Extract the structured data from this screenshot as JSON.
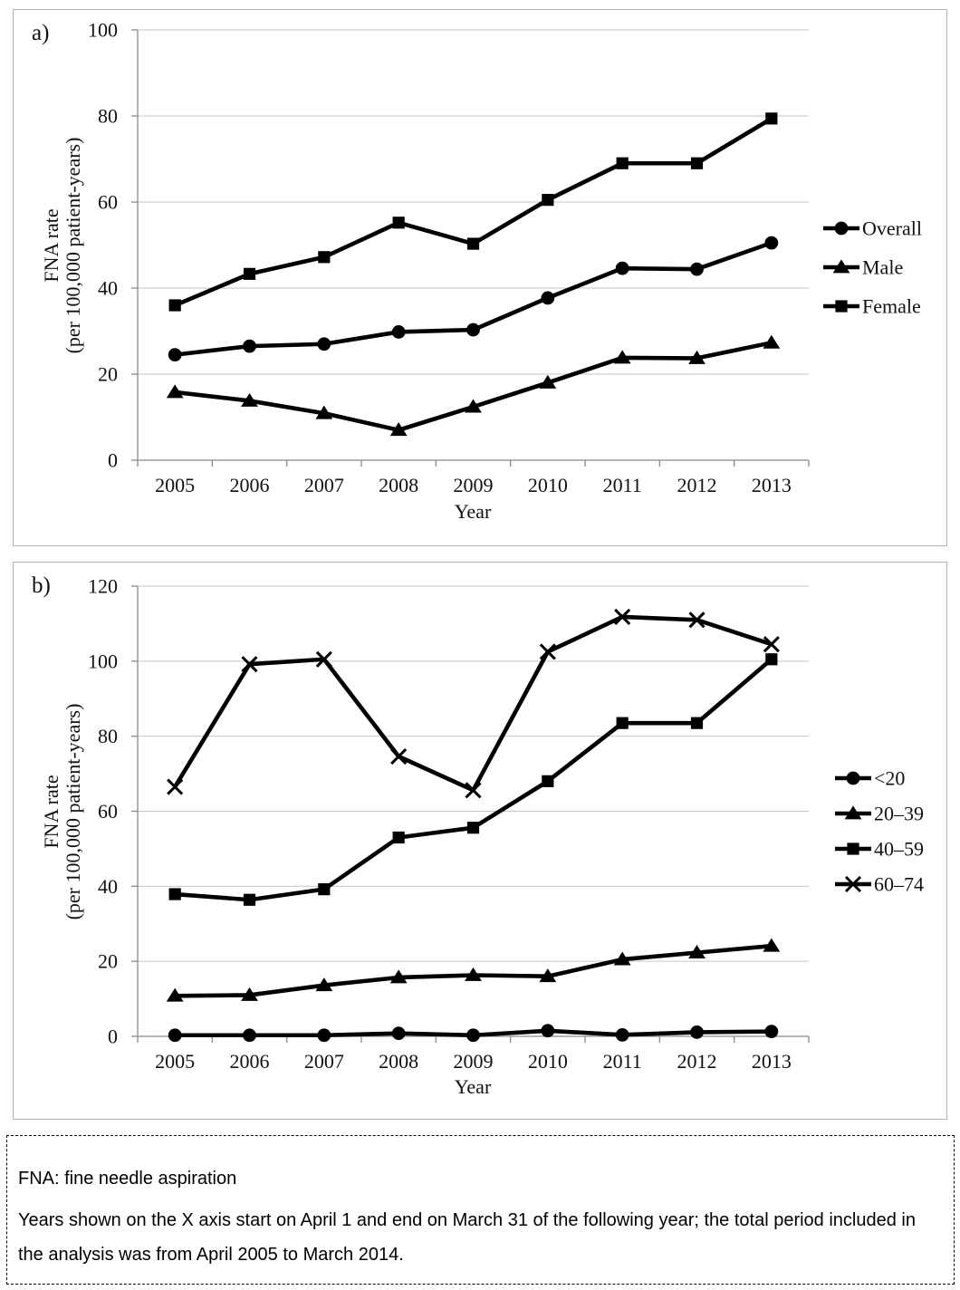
{
  "chart_data": [
    {
      "type": "line",
      "panel_label": "a)",
      "xlabel": "Year",
      "ylabel": "FNA rate (per 100,000 patient-years)",
      "ylabel_lines": [
        "FNA rate",
        "(per 100,000 patient-years)"
      ],
      "categories": [
        "2005",
        "2006",
        "2007",
        "2008",
        "2009",
        "2010",
        "2011",
        "2012",
        "2013"
      ],
      "ylim": [
        0,
        100
      ],
      "ytick_step": 20,
      "grid": true,
      "legend_position": "right",
      "series": [
        {
          "name": "Overall",
          "marker": "circle",
          "values": [
            24.5,
            26.5,
            27.0,
            29.8,
            30.3,
            37.7,
            44.6,
            44.4,
            50.5
          ]
        },
        {
          "name": "Male",
          "marker": "triangle",
          "values": [
            15.8,
            13.8,
            10.9,
            7.0,
            12.4,
            18.0,
            23.8,
            23.7,
            27.3
          ]
        },
        {
          "name": "Female",
          "marker": "square",
          "values": [
            36.0,
            43.3,
            47.2,
            55.2,
            50.3,
            60.5,
            69.0,
            69.0,
            79.4
          ]
        }
      ]
    },
    {
      "type": "line",
      "panel_label": "b)",
      "xlabel": "Year",
      "ylabel": "FNA rate (per 100,000 patient-years)",
      "ylabel_lines": [
        "FNA rate",
        "(per 100,000 patient-years)"
      ],
      "categories": [
        "2005",
        "2006",
        "2007",
        "2008",
        "2009",
        "2010",
        "2011",
        "2012",
        "2013"
      ],
      "ylim": [
        0,
        120
      ],
      "ytick_step": 20,
      "grid": true,
      "legend_position": "right",
      "series": [
        {
          "name": "<20",
          "marker": "circle",
          "values": [
            0.3,
            0.3,
            0.3,
            0.8,
            0.3,
            1.5,
            0.4,
            1.1,
            1.3
          ]
        },
        {
          "name": "20–39",
          "marker": "triangle",
          "values": [
            10.8,
            11.0,
            13.6,
            15.7,
            16.3,
            16.0,
            20.5,
            22.3,
            24.1
          ]
        },
        {
          "name": "40–59",
          "marker": "square",
          "values": [
            37.9,
            36.4,
            39.2,
            53.0,
            55.6,
            68.0,
            83.5,
            83.5,
            100.5
          ]
        },
        {
          "name": "60–74",
          "marker": "x",
          "values": [
            66.5,
            99.2,
            100.5,
            74.6,
            65.6,
            102.5,
            111.8,
            111.0,
            104.5
          ]
        }
      ]
    }
  ],
  "footnote": {
    "line1": "FNA: fine needle aspiration",
    "line2": "Years shown on the X axis start on April 1 and end on March 31 of the following year; the total period included in the analysis was from April 2005 to March 2014."
  },
  "colors": {
    "series": "#000000",
    "gridline": "#c6c6c6",
    "axis": "#8a8a8a",
    "panel_border": "#b3b3b3"
  }
}
